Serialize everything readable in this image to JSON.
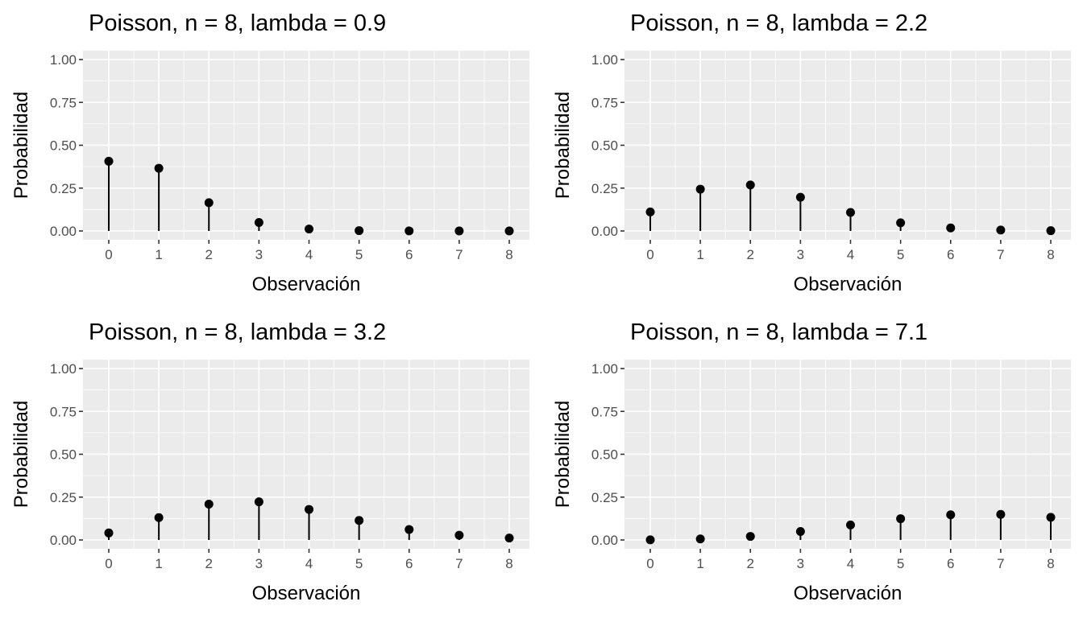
{
  "chart_data": [
    {
      "type": "lollipop",
      "title": "Poisson, n = 8, lambda = 0.9",
      "xlabel": "Observación",
      "ylabel": "Probabilidad",
      "x": [
        0,
        1,
        2,
        3,
        4,
        5,
        6,
        7,
        8
      ],
      "values": [
        0.4066,
        0.3659,
        0.1647,
        0.0494,
        0.0111,
        0.002,
        0.0003,
        4e-05,
        4e-06
      ],
      "ylim": [
        0,
        1
      ],
      "yticks": [
        "0.00",
        "0.25",
        "0.50",
        "0.75",
        "1.00"
      ],
      "xticks": [
        "0",
        "1",
        "2",
        "3",
        "4",
        "5",
        "6",
        "7",
        "8"
      ],
      "grid": true
    },
    {
      "type": "lollipop",
      "title": "Poisson, n = 8, lambda = 2.2",
      "xlabel": "Observación",
      "ylabel": "Probabilidad",
      "x": [
        0,
        1,
        2,
        3,
        4,
        5,
        6,
        7,
        8
      ],
      "values": [
        0.1108,
        0.2438,
        0.2681,
        0.1966,
        0.1082,
        0.0476,
        0.0174,
        0.0055,
        0.0015
      ],
      "ylim": [
        0,
        1
      ],
      "yticks": [
        "0.00",
        "0.25",
        "0.50",
        "0.75",
        "1.00"
      ],
      "xticks": [
        "0",
        "1",
        "2",
        "3",
        "4",
        "5",
        "6",
        "7",
        "8"
      ],
      "grid": true
    },
    {
      "type": "lollipop",
      "title": "Poisson, n = 8, lambda = 3.2",
      "xlabel": "Observación",
      "ylabel": "Probabilidad",
      "x": [
        0,
        1,
        2,
        3,
        4,
        5,
        6,
        7,
        8
      ],
      "values": [
        0.0408,
        0.1304,
        0.2087,
        0.2226,
        0.1781,
        0.114,
        0.0608,
        0.0278,
        0.0111
      ],
      "ylim": [
        0,
        1
      ],
      "yticks": [
        "0.00",
        "0.25",
        "0.50",
        "0.75",
        "1.00"
      ],
      "xticks": [
        "0",
        "1",
        "2",
        "3",
        "4",
        "5",
        "6",
        "7",
        "8"
      ],
      "grid": true
    },
    {
      "type": "lollipop",
      "title": "Poisson, n = 8, lambda = 7.1",
      "xlabel": "Observación",
      "ylabel": "Probabilidad",
      "x": [
        0,
        1,
        2,
        3,
        4,
        5,
        6,
        7,
        8
      ],
      "values": [
        0.0008,
        0.0059,
        0.0208,
        0.0492,
        0.0874,
        0.1241,
        0.1468,
        0.1489,
        0.1321
      ],
      "ylim": [
        0,
        1
      ],
      "yticks": [
        "0.00",
        "0.25",
        "0.50",
        "0.75",
        "1.00"
      ],
      "xticks": [
        "0",
        "1",
        "2",
        "3",
        "4",
        "5",
        "6",
        "7",
        "8"
      ],
      "grid": true
    }
  ],
  "colors": {
    "panel": "#EBEBEB",
    "grid": "#FFFFFF",
    "mark": "#000000",
    "tick_text": "#4D4D4D"
  }
}
